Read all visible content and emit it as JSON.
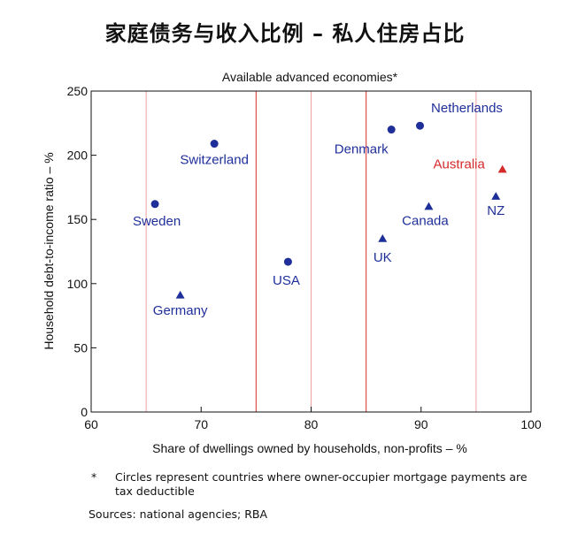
{
  "page_title": "家庭债务与收入比例 – 私人住房占比",
  "chart_data": {
    "type": "scatter",
    "subtitle": "Available advanced economies*",
    "xlabel": "Share of dwellings owned by households, non-profits – %",
    "ylabel": "Household debt-to-income ratio – %",
    "xlim": [
      60,
      100
    ],
    "ylim": [
      0,
      250
    ],
    "xticks": [
      60,
      70,
      80,
      90,
      100
    ],
    "yticks": [
      0,
      50,
      100,
      150,
      200,
      250
    ],
    "vertical_lines_light": [
      65,
      80,
      95
    ],
    "vertical_lines_dark": [
      75,
      85
    ],
    "grid": false,
    "colors": {
      "marker": "#1f2f9a",
      "highlight": "#d42a2a",
      "line_light": "#f0a0a0",
      "line_dark": "#e05050"
    },
    "points": [
      {
        "label": "Sweden",
        "x": 65.8,
        "y": 162,
        "marker": "circle",
        "highlight": false
      },
      {
        "label": "Germany",
        "x": 68.1,
        "y": 91,
        "marker": "triangle",
        "highlight": false
      },
      {
        "label": "Switzerland",
        "x": 71.2,
        "y": 209,
        "marker": "circle",
        "highlight": false
      },
      {
        "label": "USA",
        "x": 77.9,
        "y": 117,
        "marker": "circle",
        "highlight": false
      },
      {
        "label": "UK",
        "x": 86.5,
        "y": 135,
        "marker": "triangle",
        "highlight": false
      },
      {
        "label": "Denmark",
        "x": 87.3,
        "y": 220,
        "marker": "circle",
        "highlight": false
      },
      {
        "label": "Netherlands",
        "x": 89.9,
        "y": 223,
        "marker": "circle",
        "highlight": false
      },
      {
        "label": "Canada",
        "x": 90.7,
        "y": 160,
        "marker": "triangle",
        "highlight": false
      },
      {
        "label": "NZ",
        "x": 96.8,
        "y": 168,
        "marker": "triangle",
        "highlight": false
      },
      {
        "label": "Australia",
        "x": 97.4,
        "y": 189,
        "marker": "triangle",
        "highlight": true
      }
    ]
  },
  "footnote": {
    "marker": "*",
    "text": "Circles represent countries where owner-occupier mortgage payments are tax deductible"
  },
  "sources": "Sources: national agencies; RBA"
}
